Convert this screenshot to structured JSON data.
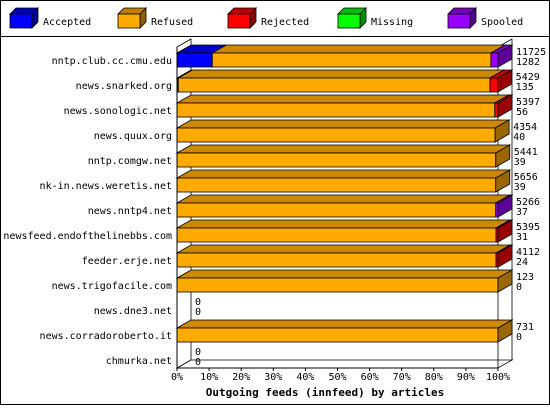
{
  "chart_data": {
    "type": "bar",
    "orientation": "horizontal",
    "stacked": true,
    "three_d": true,
    "xlabel": "Outgoing feeds (innfeed) by articles",
    "xlim": [
      0,
      100
    ],
    "x_ticks": [
      "0%",
      "10%",
      "20%",
      "30%",
      "40%",
      "50%",
      "60%",
      "70%",
      "80%",
      "90%",
      "100%"
    ],
    "legend_position": "top",
    "series": [
      {
        "name": "Accepted",
        "color": "#0000ff",
        "values": [
          11.0,
          0.4,
          0,
          0,
          0,
          0,
          0,
          0,
          0,
          0,
          0,
          0,
          0
        ]
      },
      {
        "name": "Refused",
        "color": "#ffaa00",
        "values": [
          86.8,
          97.1,
          99.0,
          99.1,
          99.3,
          99.3,
          99.3,
          99.4,
          99.4,
          100,
          0,
          100,
          0
        ]
      },
      {
        "name": "Rejected",
        "color": "#ff0000",
        "values": [
          0,
          2.4,
          1.0,
          0,
          0,
          0,
          0,
          0.6,
          0.6,
          0,
          0,
          0,
          0
        ]
      },
      {
        "name": "Missing",
        "color": "#00ff00",
        "values": [
          0,
          0,
          0,
          0,
          0,
          0,
          0,
          0,
          0,
          0,
          0,
          0,
          0
        ]
      },
      {
        "name": "Spooled",
        "color": "#9900ff",
        "values": [
          2.2,
          0,
          0,
          0,
          0,
          0,
          0.7,
          0,
          0,
          0,
          0,
          0,
          0
        ]
      }
    ],
    "categories": [
      "nntp.club.cc.cmu.edu",
      "news.snarked.org",
      "news.sonologic.net",
      "news.quux.org",
      "nntp.comgw.net",
      "nk-in.news.weretis.net",
      "news.nntp4.net",
      "newsfeed.endofthelinebbs.com",
      "feeder.erje.net",
      "news.trigofacile.com",
      "news.dne3.net",
      "news.corradoroberto.it",
      "chmurka.net"
    ],
    "data_labels": [
      [
        "11725",
        "1282"
      ],
      [
        "5429",
        "135"
      ],
      [
        "5397",
        "56"
      ],
      [
        "4354",
        "40"
      ],
      [
        "5441",
        "39"
      ],
      [
        "5656",
        "39"
      ],
      [
        "5266",
        "37"
      ],
      [
        "5395",
        "31"
      ],
      [
        "4112",
        "24"
      ],
      [
        "123",
        "0"
      ],
      [
        "0",
        "0"
      ],
      [
        "731",
        "0"
      ],
      [
        "0",
        "0"
      ]
    ]
  }
}
